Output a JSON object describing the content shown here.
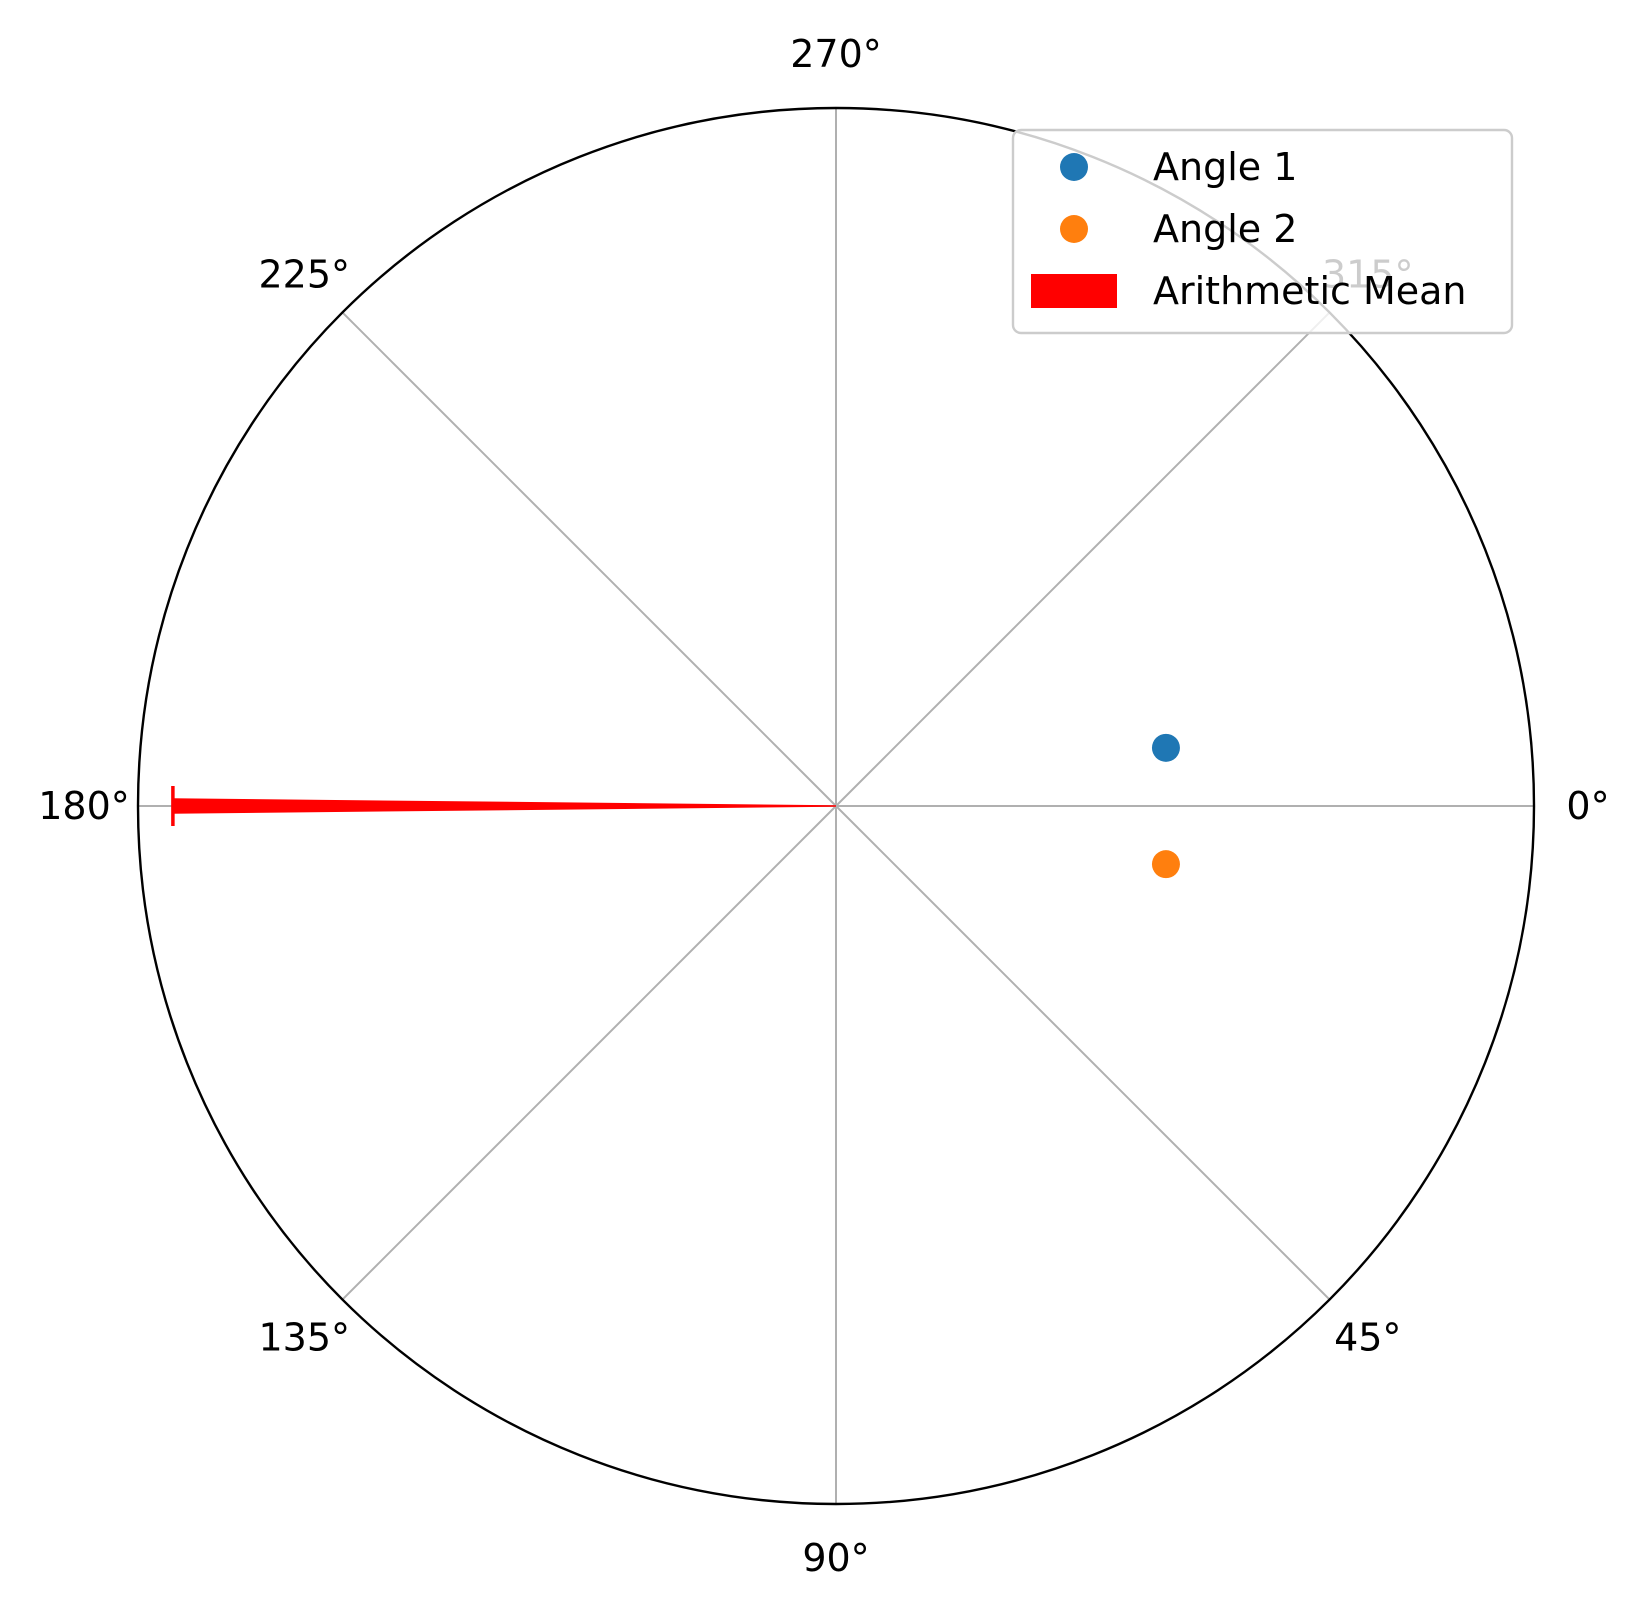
{
  "chart_data": {
    "type": "scatter",
    "projection": "polar",
    "theta_direction": "clockwise",
    "theta_zero": "east",
    "theta_tick_labels": [
      {
        "angle": 0,
        "label": "0°"
      },
      {
        "angle": 45,
        "label": "45°"
      },
      {
        "angle": 90,
        "label": "90°"
      },
      {
        "angle": 135,
        "label": "135°"
      },
      {
        "angle": 180,
        "label": "180°"
      },
      {
        "angle": 225,
        "label": "225°"
      },
      {
        "angle": 270,
        "label": "270°"
      },
      {
        "angle": 315,
        "label": "315°"
      }
    ],
    "r_range": [
      0,
      1
    ],
    "radial_tick_labels": "none",
    "grid": true,
    "series": [
      {
        "name": "Angle 1",
        "kind": "point",
        "theta_deg": 350,
        "r": 0.48,
        "color": "#1f77b4"
      },
      {
        "name": "Angle 2",
        "kind": "point",
        "theta_deg": 10,
        "r": 0.48,
        "color": "#ff7f0e"
      }
    ],
    "mean": {
      "name": "Arithmetic Mean",
      "kind": "arrow",
      "theta_deg": 180,
      "r": 0.95,
      "color": "#ff0000"
    },
    "legend": {
      "position": "top-right",
      "items": [
        {
          "label": "Angle 1",
          "marker": "circle",
          "color": "#1f77b4"
        },
        {
          "label": "Angle 2",
          "marker": "circle",
          "color": "#ff7f0e"
        },
        {
          "label": "Arithmetic Mean",
          "marker": "rect",
          "color": "#ff0000"
        }
      ]
    }
  }
}
